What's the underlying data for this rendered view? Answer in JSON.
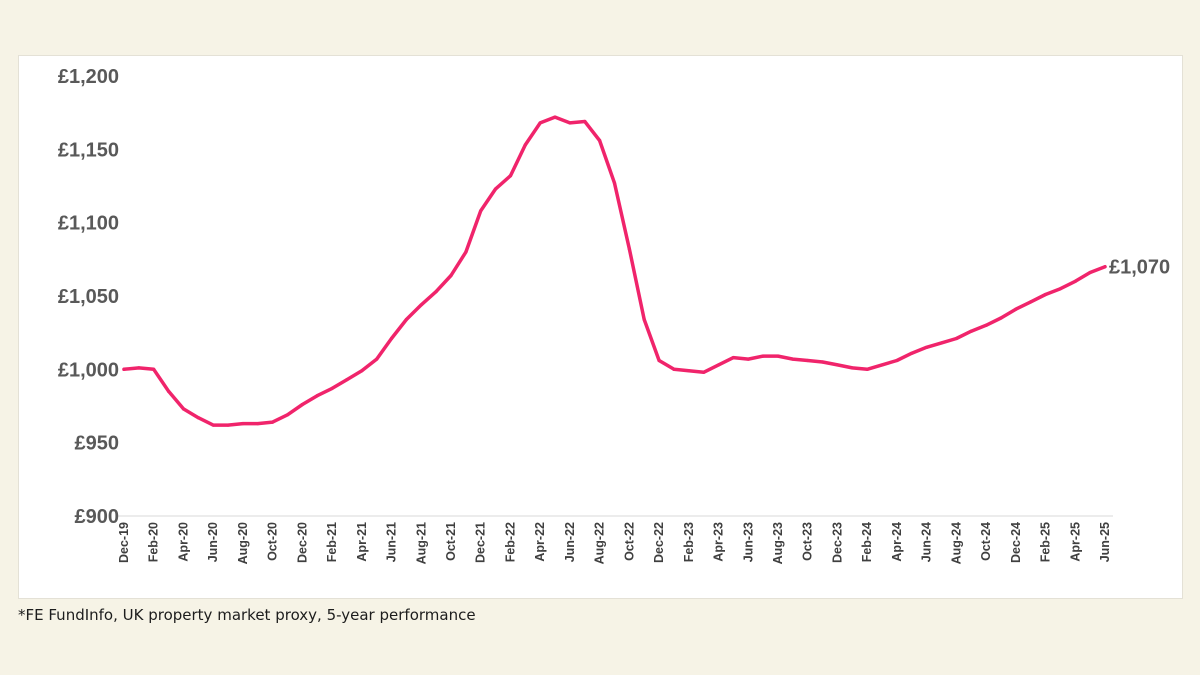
{
  "chart_data": {
    "type": "line",
    "title": "",
    "xlabel": "",
    "ylabel": "",
    "ylim": [
      900,
      1200
    ],
    "y_ticks": [
      "£900",
      "£950",
      "£1,000",
      "£1,050",
      "£1,100",
      "£1,150",
      "£1,200"
    ],
    "y_tick_values": [
      900,
      950,
      1000,
      1050,
      1100,
      1150,
      1200
    ],
    "x_tick_labels": [
      "Dec-19",
      "Feb-20",
      "Apr-20",
      "Jun-20",
      "Aug-20",
      "Oct-20",
      "Dec-20",
      "Feb-21",
      "Apr-21",
      "Jun-21",
      "Aug-21",
      "Oct-21",
      "Dec-21",
      "Feb-22",
      "Apr-22",
      "Jun-22",
      "Aug-22",
      "Oct-22",
      "Dec-22",
      "Feb-23",
      "Apr-23",
      "Jun-23",
      "Aug-23",
      "Oct-23",
      "Dec-23",
      "Feb-24",
      "Apr-24",
      "Jun-24",
      "Aug-24",
      "Oct-24",
      "Dec-24",
      "Feb-25",
      "Apr-25",
      "Jun-25"
    ],
    "x": [
      "Dec-19",
      "Jan-20",
      "Feb-20",
      "Mar-20",
      "Apr-20",
      "May-20",
      "Jun-20",
      "Jul-20",
      "Aug-20",
      "Sep-20",
      "Oct-20",
      "Nov-20",
      "Dec-20",
      "Jan-21",
      "Feb-21",
      "Mar-21",
      "Apr-21",
      "May-21",
      "Jun-21",
      "Jul-21",
      "Aug-21",
      "Sep-21",
      "Oct-21",
      "Nov-21",
      "Dec-21",
      "Jan-22",
      "Feb-22",
      "Mar-22",
      "Apr-22",
      "May-22",
      "Jun-22",
      "Jul-22",
      "Aug-22",
      "Sep-22",
      "Oct-22",
      "Nov-22",
      "Dec-22",
      "Jan-23",
      "Feb-23",
      "Mar-23",
      "Apr-23",
      "May-23",
      "Jun-23",
      "Jul-23",
      "Aug-23",
      "Sep-23",
      "Oct-23",
      "Nov-23",
      "Dec-23",
      "Jan-24",
      "Feb-24",
      "Mar-24",
      "Apr-24",
      "May-24",
      "Jun-24",
      "Jul-24",
      "Aug-24",
      "Sep-24",
      "Oct-24",
      "Nov-24",
      "Dec-24",
      "Jan-25",
      "Feb-25",
      "Mar-25",
      "Apr-25",
      "May-25",
      "Jun-25"
    ],
    "series": [
      {
        "color": "#f0246b",
        "values": [
          1000,
          1001,
          1000,
          985,
          973,
          967,
          962,
          962,
          963,
          963,
          964,
          969,
          976,
          982,
          987,
          993,
          999,
          1007,
          1021,
          1034,
          1044,
          1053,
          1064,
          1080,
          1108,
          1123,
          1132,
          1153,
          1168,
          1172,
          1168,
          1169,
          1156,
          1127,
          1082,
          1034,
          1006,
          1000,
          999,
          998,
          1003,
          1008,
          1007,
          1009,
          1009,
          1007,
          1006,
          1005,
          1003,
          1001,
          1000,
          1003,
          1006,
          1011,
          1015,
          1018,
          1021,
          1026,
          1030,
          1035,
          1041,
          1046,
          1051,
          1055,
          1060,
          1066,
          1070
        ]
      }
    ],
    "end_label": "£1,070",
    "grid": false,
    "legend": "none"
  },
  "footnote": "*FE FundInfo, UK property market proxy, 5-year performance"
}
